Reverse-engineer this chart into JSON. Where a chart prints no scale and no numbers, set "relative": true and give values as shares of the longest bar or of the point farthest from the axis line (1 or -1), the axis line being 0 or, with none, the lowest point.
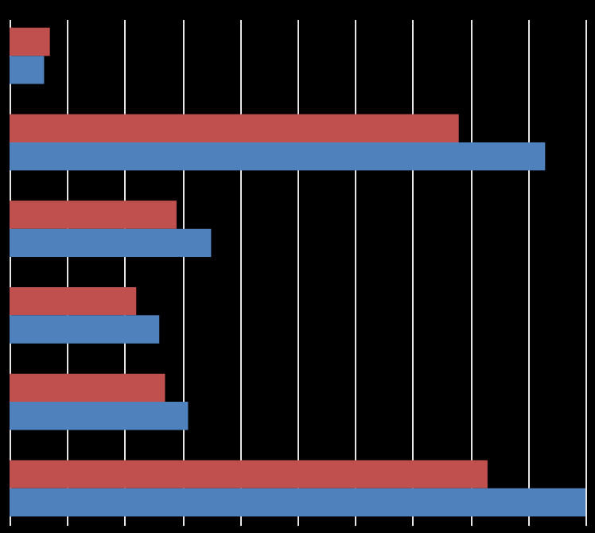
{
  "chart_data": {
    "type": "bar",
    "orientation": "horizontal",
    "relative": true,
    "grid": "x",
    "legend": false,
    "categories": [
      null,
      null,
      null,
      null,
      null,
      null
    ],
    "series": [
      {
        "color": "#c0504d",
        "values": [
          0.07,
          0.78,
          0.29,
          0.22,
          0.27,
          0.83
        ]
      },
      {
        "color": "#4f81bd",
        "values": [
          0.06,
          0.93,
          0.35,
          0.26,
          0.31,
          1
        ]
      }
    ]
  }
}
